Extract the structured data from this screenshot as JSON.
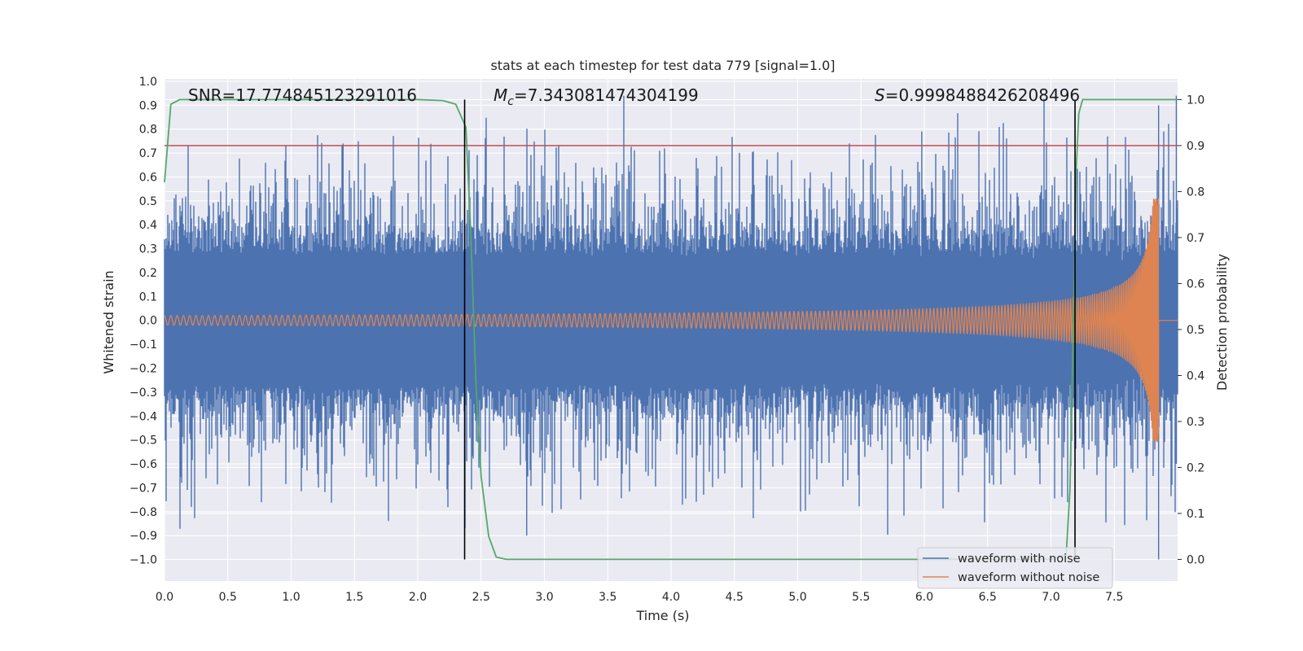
{
  "chart_data": {
    "type": "line",
    "title": "stats at each timestep for test data 779 [signal=1.0]",
    "xlabel": "Time (s)",
    "ylabel_left": "Whitened strain",
    "ylabel_right": "Detection probability",
    "xlim": [
      0.0,
      8.0
    ],
    "ylim_left": [
      -1.09,
      1.01
    ],
    "ylim_right": [
      -0.047,
      1.045
    ],
    "xticks": [
      "0.0",
      "0.5",
      "1.0",
      "1.5",
      "2.0",
      "2.5",
      "3.0",
      "3.5",
      "4.0",
      "4.5",
      "5.0",
      "5.5",
      "6.0",
      "6.5",
      "7.0",
      "7.5"
    ],
    "yticks_left": [
      "1.0",
      "0.9",
      "0.8",
      "0.7",
      "0.6",
      "0.5",
      "0.4",
      "0.3",
      "0.2",
      "0.1",
      "0.0",
      "−0.1",
      "−0.2",
      "−0.3",
      "−0.4",
      "−0.5",
      "−0.6",
      "−0.7",
      "−0.8",
      "−0.9",
      "−1.0"
    ],
    "yticks_right": [
      "1.0",
      "0.9",
      "0.8",
      "0.7",
      "0.6",
      "0.5",
      "0.4",
      "0.3",
      "0.2",
      "0.1",
      "0.0"
    ],
    "grid": true,
    "annotations": {
      "snr": "SNR=17.774845123291016",
      "mc_symbol": "M",
      "mc_sub": "c",
      "mc_value": "=7.343081474304199",
      "s_symbol": "S",
      "s_value": "=0.9998488426208496"
    },
    "legend": {
      "placement": "lower-right",
      "entries": [
        {
          "label": "waveform with noise",
          "color": "#4c72b0"
        },
        {
          "label": "waveform without noise",
          "color": "#dd8452"
        }
      ]
    },
    "series": [
      {
        "label_ref": 0,
        "kind": "noisy-strain",
        "color": "#4c72b0",
        "x_range": [
          0.0,
          8.0
        ],
        "typical_peak": 0.45,
        "max_peak": 1.0,
        "min_peak": -1.0
      },
      {
        "label_ref": 1,
        "kind": "chirp",
        "color": "#dd8452",
        "x_range": [
          0.0,
          8.0
        ],
        "start_amplitude": 0.02,
        "peak_amplitude": 0.51,
        "merger_time": 7.85
      },
      {
        "kind": "detection-probability",
        "color": "#55a868",
        "axis": "right",
        "x": [
          0.0,
          0.05,
          0.12,
          0.3,
          1.0,
          2.0,
          2.2,
          2.3,
          2.38,
          2.42,
          2.46,
          2.5,
          2.56,
          2.62,
          2.7,
          3.0,
          4.0,
          5.0,
          6.0,
          7.0,
          7.12,
          7.15,
          7.18,
          7.2,
          7.22,
          7.25,
          7.3,
          8.0
        ],
        "y": [
          0.82,
          0.99,
          1.0,
          1.0,
          1.0,
          1.0,
          0.998,
          0.99,
          0.94,
          0.7,
          0.38,
          0.18,
          0.05,
          0.005,
          0.0,
          0.0,
          0.0,
          0.0,
          0.0,
          0.0,
          0.01,
          0.15,
          0.55,
          0.85,
          0.97,
          1.0,
          1.0,
          1.0
        ]
      },
      {
        "kind": "threshold",
        "color": "#c44e52",
        "axis": "right",
        "y": 0.9
      }
    ],
    "vertical_lines": [
      {
        "x": 2.37,
        "color": "#000000"
      },
      {
        "x": 7.19,
        "color": "#000000"
      }
    ],
    "colors": {
      "plot_bg": "#eaeaf2",
      "grid": "#ffffff"
    }
  }
}
